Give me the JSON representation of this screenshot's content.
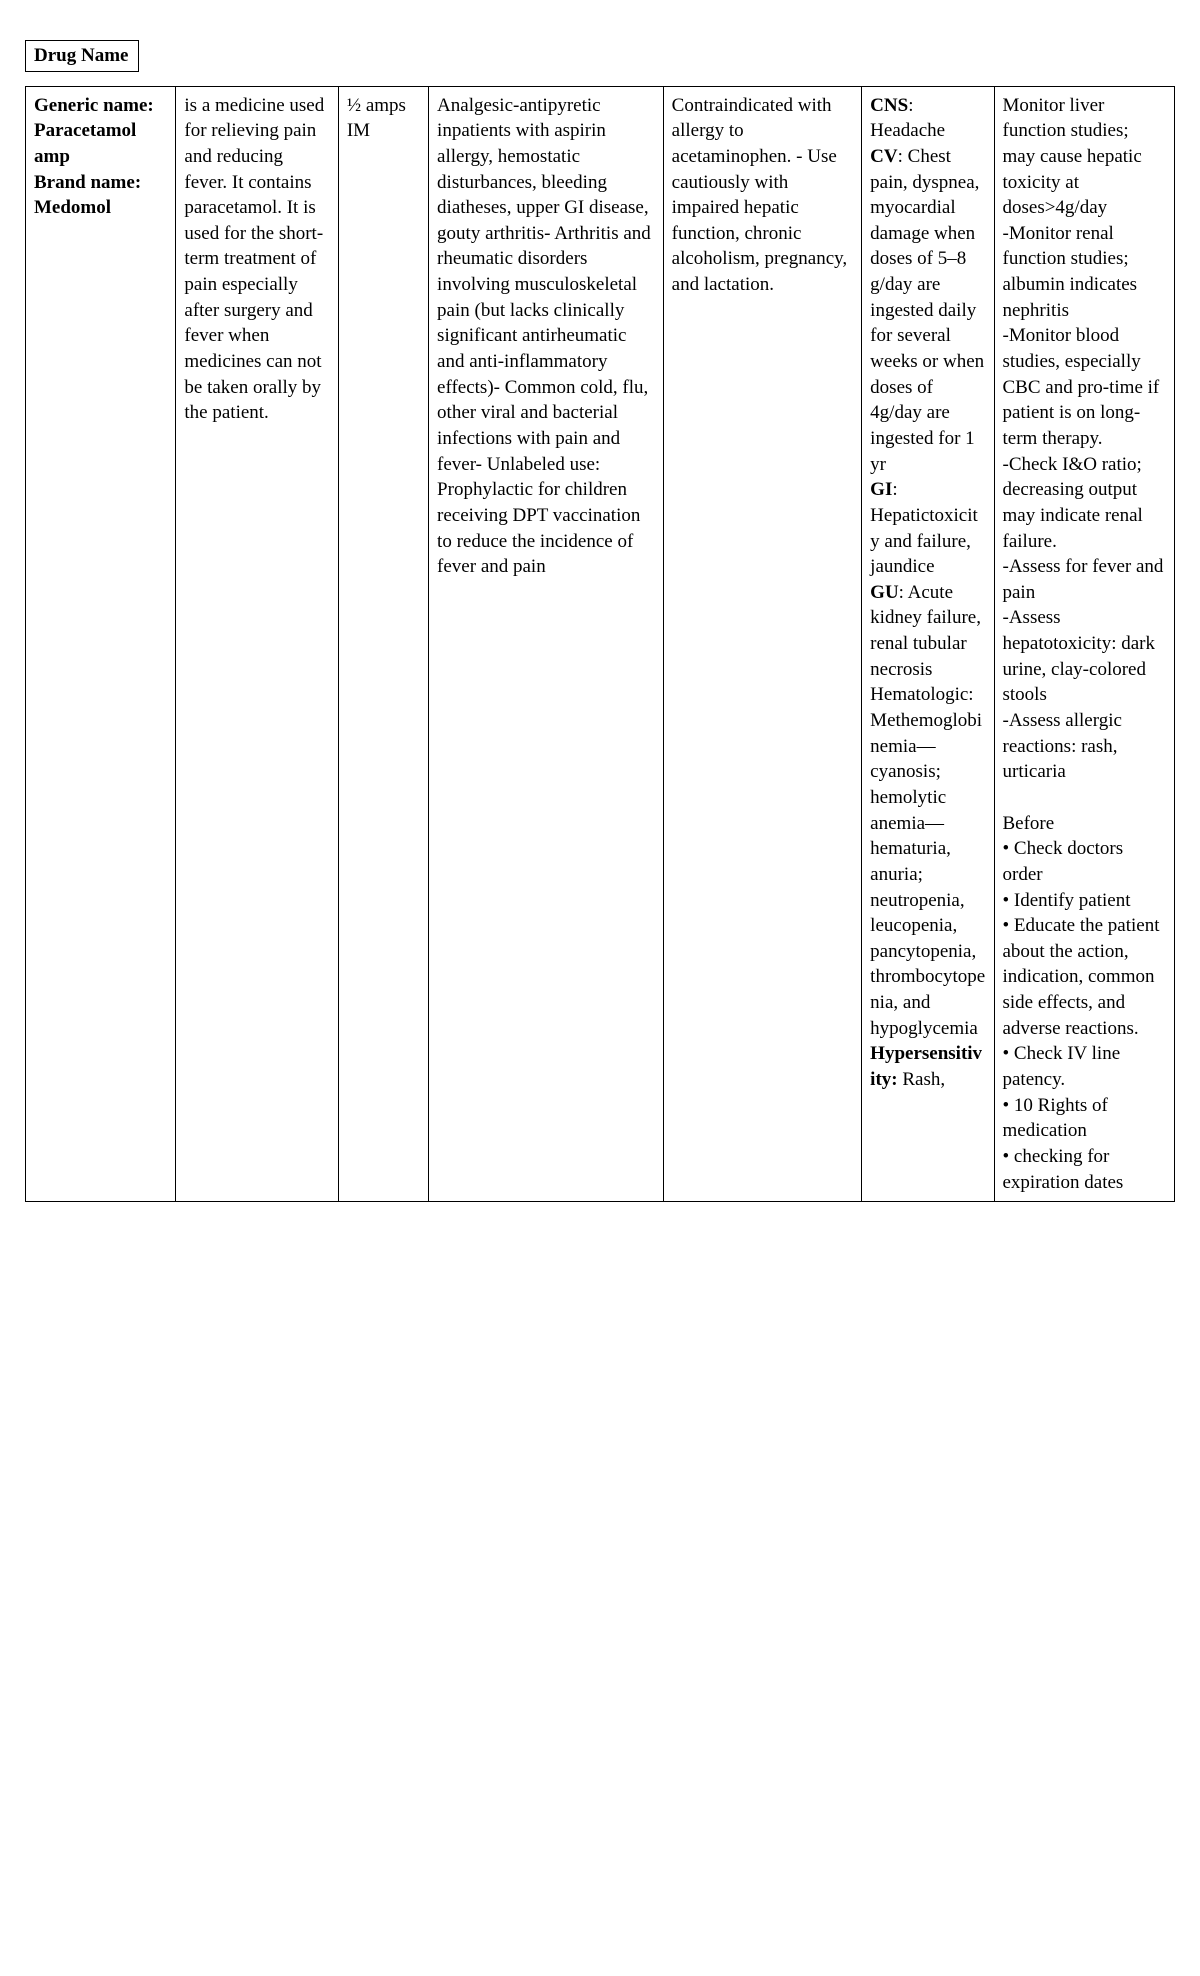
{
  "header": {
    "title": "Drug Name"
  },
  "row": {
    "name": {
      "generic_label": "Generic name:",
      "generic_value": "Paracetamol amp",
      "brand_label": "Brand name:",
      "brand_value": "Medomol"
    },
    "description": "is a medicine used for relieving pain and reducing fever. It contains paracetamol. It is used for the short-term treatment of pain especially after surgery and fever when medicines can not be taken orally by the patient.",
    "dose": "½ amps IM",
    "indications": "Analgesic-antipyretic inpatients with aspirin allergy, hemostatic disturbances, bleeding diatheses, upper GI disease, gouty arthritis- Arthritis and rheumatic disorders involving musculoskeletal pain (but lacks clinically significant antirheumatic and anti-inflammatory effects)- Common cold, flu, other viral and bacterial infections with pain and fever- Unlabeled use: Prophylactic for children receiving DPT vaccination to reduce the incidence of fever and pain",
    "contraindications": "Contraindicated with allergy to acetaminophen. - Use cautiously with impaired hepatic function, chronic alcoholism, pregnancy, and lactation.",
    "side_effects": {
      "cns_label": "CNS",
      "cns_text": ": Headache",
      "cv_label": "CV",
      "cv_text": ": Chest pain, dyspnea, myocardial damage when doses of 5–8 g/day are ingested daily for several weeks or when doses of 4g/day are ingested for 1 yr",
      "gi_label": "GI",
      "gi_text": ": Hepatictoxicity and failure, jaundice",
      "gu_label": "GU",
      "gu_text": ": Acute kidney failure, renal tubular necrosis Hematologic: Methemoglobinemia— cyanosis; hemolytic anemia— hematuria, anuria; neutropenia, leucopenia, pancytopenia, thrombocytopenia, and hypoglycemia",
      "hyp_label": "Hypersensitivity:",
      "hyp_text": " Rash,"
    },
    "nursing": {
      "monitor": "Monitor liver function studies; may cause hepatic toxicity at doses>4g/day\n-Monitor renal function studies; albumin indicates nephritis\n-Monitor blood studies, especially CBC and pro-time if patient is on long-term therapy.\n-Check I&O ratio; decreasing output may indicate renal failure.\n-Assess for fever and pain\n-Assess hepatotoxicity: dark urine, clay-colored stools\n-Assess allergic reactions: rash, urticaria",
      "before_label": "Before",
      "before_items": "• Check doctors order\n• Identify patient\n• Educate the patient about the action, indication, common side effects, and adverse reactions.\n• Check IV line patency.\n• 10 Rights of medication\n• checking for expiration dates"
    }
  }
}
